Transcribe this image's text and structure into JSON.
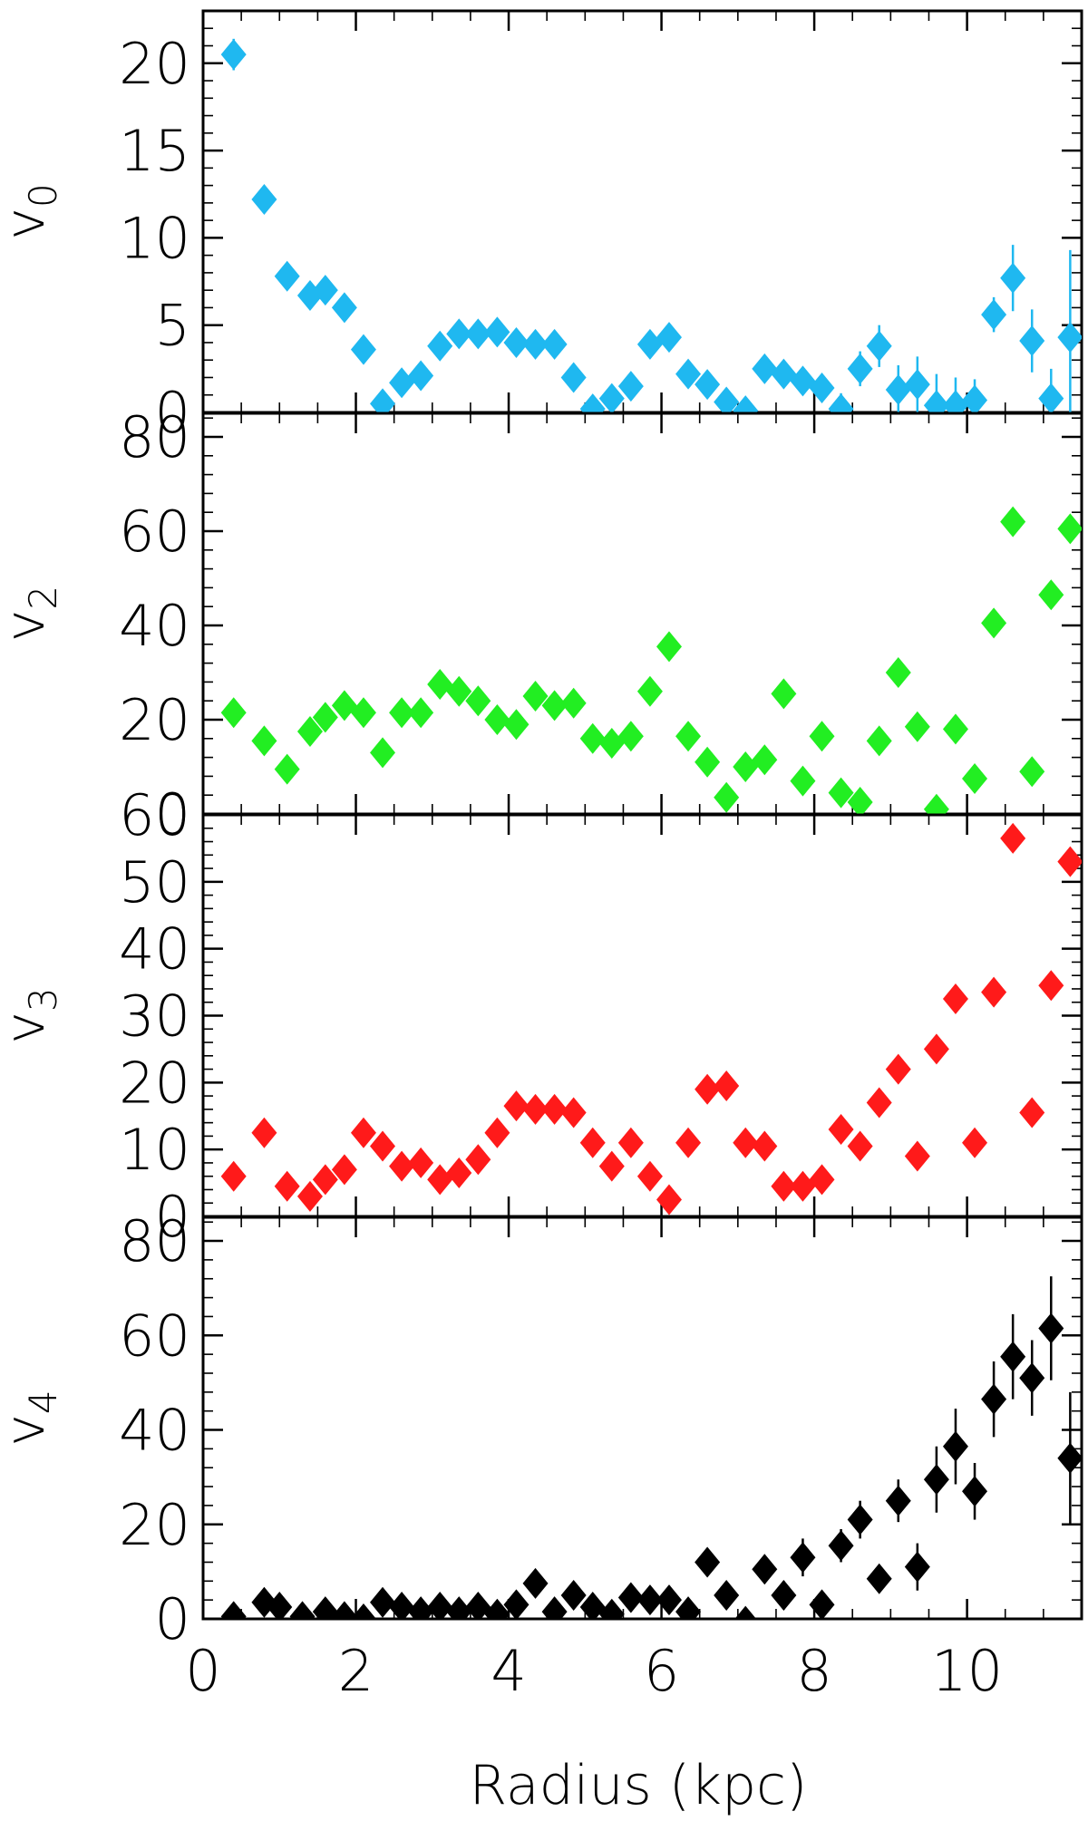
{
  "chart_data": [
    {
      "type": "scatter",
      "ylabel": "v",
      "ylabel_sub": "0",
      "ylim": [
        0,
        23
      ],
      "yticks": [
        0,
        5,
        10,
        15,
        20
      ],
      "color": "#1fb8f0",
      "x": [
        0.4,
        0.8,
        1.1,
        1.4,
        1.6,
        1.85,
        2.1,
        2.35,
        2.6,
        2.85,
        3.1,
        3.35,
        3.6,
        3.85,
        4.1,
        4.35,
        4.6,
        4.85,
        5.1,
        5.35,
        5.6,
        5.85,
        6.1,
        6.35,
        6.6,
        6.85,
        7.1,
        7.35,
        7.6,
        7.85,
        8.1,
        8.35,
        8.6,
        8.85,
        9.1,
        9.35,
        9.6,
        9.85,
        10.1,
        10.35,
        10.6,
        10.85,
        11.1,
        11.35
      ],
      "y": [
        20.5,
        12.2,
        7.8,
        6.7,
        7.0,
        6.0,
        3.6,
        0.5,
        1.7,
        2.1,
        3.8,
        4.5,
        4.5,
        4.6,
        4.0,
        3.9,
        3.9,
        2.0,
        0.2,
        0.8,
        1.5,
        3.9,
        4.3,
        2.2,
        1.6,
        0.6,
        0.1,
        2.5,
        2.2,
        1.8,
        1.4,
        0.2,
        2.5,
        3.8,
        1.3,
        1.6,
        0.4,
        0.4,
        0.7,
        5.6,
        7.7,
        4.1,
        0.8,
        4.3
      ],
      "err": [
        0.9,
        0.4,
        0.5,
        0.5,
        0.5,
        0.5,
        0.5,
        0.5,
        0.5,
        0.5,
        0.5,
        0.5,
        0.5,
        0.5,
        0.5,
        0.5,
        0.6,
        0.6,
        0.6,
        0.6,
        0.6,
        0.6,
        0.7,
        0.7,
        0.7,
        0.7,
        0.7,
        0.7,
        0.8,
        0.8,
        0.8,
        0.9,
        1.0,
        1.2,
        1.4,
        1.6,
        1.8,
        1.6,
        1.2,
        1.0,
        1.9,
        1.8,
        1.7,
        5.0
      ]
    },
    {
      "type": "scatter",
      "ylabel": "v",
      "ylabel_sub": "2",
      "ylim": [
        0,
        85
      ],
      "yticks": [
        0,
        20,
        40,
        60,
        80
      ],
      "color": "#22ee22",
      "x": [
        0.4,
        0.8,
        1.1,
        1.4,
        1.6,
        1.85,
        2.1,
        2.35,
        2.6,
        2.85,
        3.1,
        3.35,
        3.6,
        3.85,
        4.1,
        4.35,
        4.6,
        4.85,
        5.1,
        5.35,
        5.6,
        5.85,
        6.1,
        6.35,
        6.6,
        6.85,
        7.1,
        7.35,
        7.6,
        7.85,
        8.1,
        8.35,
        8.6,
        8.85,
        9.1,
        9.35,
        9.6,
        9.85,
        10.1,
        10.35,
        10.6,
        10.85,
        11.1,
        11.35
      ],
      "y": [
        21.5,
        15.5,
        9.5,
        17.5,
        20.5,
        23.0,
        21.5,
        13.0,
        21.5,
        21.5,
        27.5,
        26.0,
        24.0,
        20.0,
        19.0,
        25.0,
        23.0,
        23.5,
        16.0,
        15.0,
        16.5,
        26.0,
        35.5,
        16.5,
        11.0,
        3.5,
        10.0,
        11.5,
        25.5,
        7.0,
        16.5,
        4.5,
        2.5,
        15.5,
        30.0,
        18.5,
        1.0,
        18.0,
        7.5,
        40.5,
        62.0,
        9.0,
        46.5,
        60.5
      ]
    },
    {
      "type": "scatter",
      "ylabel": "v",
      "ylabel_sub": "3",
      "ylim": [
        0,
        60
      ],
      "yticks": [
        0,
        10,
        20,
        30,
        40,
        50,
        60
      ],
      "color": "#ff1a1a",
      "x": [
        0.4,
        0.8,
        1.1,
        1.4,
        1.6,
        1.85,
        2.1,
        2.35,
        2.6,
        2.85,
        3.1,
        3.35,
        3.6,
        3.85,
        4.1,
        4.35,
        4.6,
        4.85,
        5.1,
        5.35,
        5.6,
        5.85,
        6.1,
        6.35,
        6.6,
        6.85,
        7.1,
        7.35,
        7.6,
        7.85,
        8.1,
        8.35,
        8.6,
        8.85,
        9.1,
        9.35,
        9.6,
        9.85,
        10.1,
        10.35,
        10.6,
        10.85,
        11.1,
        11.35
      ],
      "y": [
        6.0,
        12.5,
        4.5,
        3.0,
        5.5,
        7.0,
        12.5,
        10.5,
        7.5,
        8.0,
        5.5,
        6.5,
        8.5,
        12.5,
        16.5,
        16.0,
        16.0,
        15.5,
        11.0,
        7.5,
        11.0,
        6.0,
        2.5,
        11.0,
        19.0,
        19.5,
        11.0,
        10.5,
        4.5,
        4.5,
        5.5,
        13.0,
        10.5,
        17.0,
        22.0,
        9.0,
        25.0,
        32.5,
        11.0,
        33.5,
        56.5,
        15.5,
        34.5,
        53.0
      ]
    },
    {
      "type": "scatter",
      "ylabel": "v",
      "ylabel_sub": "4",
      "ylim": [
        0,
        85
      ],
      "yticks": [
        0,
        20,
        40,
        60,
        80
      ],
      "color": "#000000",
      "x": [
        0.4,
        0.8,
        1.0,
        1.3,
        1.6,
        1.85,
        2.1,
        2.35,
        2.6,
        2.85,
        3.1,
        3.35,
        3.6,
        3.85,
        4.1,
        4.35,
        4.6,
        4.85,
        5.1,
        5.35,
        5.6,
        5.85,
        6.1,
        6.35,
        6.6,
        6.85,
        7.1,
        7.35,
        7.6,
        7.85,
        8.1,
        8.35,
        8.6,
        8.85,
        9.1,
        9.35,
        9.6,
        9.85,
        10.1,
        10.35,
        10.6,
        10.85,
        11.1,
        11.35
      ],
      "y": [
        0.5,
        3.5,
        2.5,
        0.5,
        1.5,
        0.5,
        0.0,
        3.5,
        2.5,
        1.5,
        2.5,
        1.5,
        2.5,
        1.0,
        3.0,
        7.5,
        1.5,
        5.0,
        2.5,
        1.0,
        4.5,
        4.0,
        4.0,
        1.5,
        12.0,
        5.0,
        -0.5,
        10.5,
        5.0,
        13.0,
        3.0,
        15.5,
        21.0,
        8.5,
        25.0,
        11.0,
        29.5,
        36.5,
        27.0,
        46.5,
        55.5,
        51.0,
        61.5,
        34.0
      ],
      "err": [
        3.0,
        1.0,
        1.5,
        1.5,
        1.5,
        2.0,
        2.0,
        1.5,
        1.5,
        1.5,
        1.5,
        2.0,
        2.0,
        1.5,
        2.0,
        2.0,
        2.0,
        2.5,
        2.5,
        2.5,
        2.5,
        2.5,
        3.0,
        2.5,
        2.5,
        2.5,
        3.0,
        3.0,
        3.0,
        4.0,
        2.5,
        3.5,
        4.0,
        2.5,
        4.5,
        5.0,
        7.0,
        8.0,
        6.0,
        8.0,
        9.0,
        8.0,
        11.0,
        14.0
      ]
    }
  ],
  "x_axis": {
    "label": "Radius (kpc)",
    "xlim": [
      0,
      11.5
    ],
    "ticks": [
      0,
      2,
      4,
      6,
      8,
      10
    ]
  }
}
